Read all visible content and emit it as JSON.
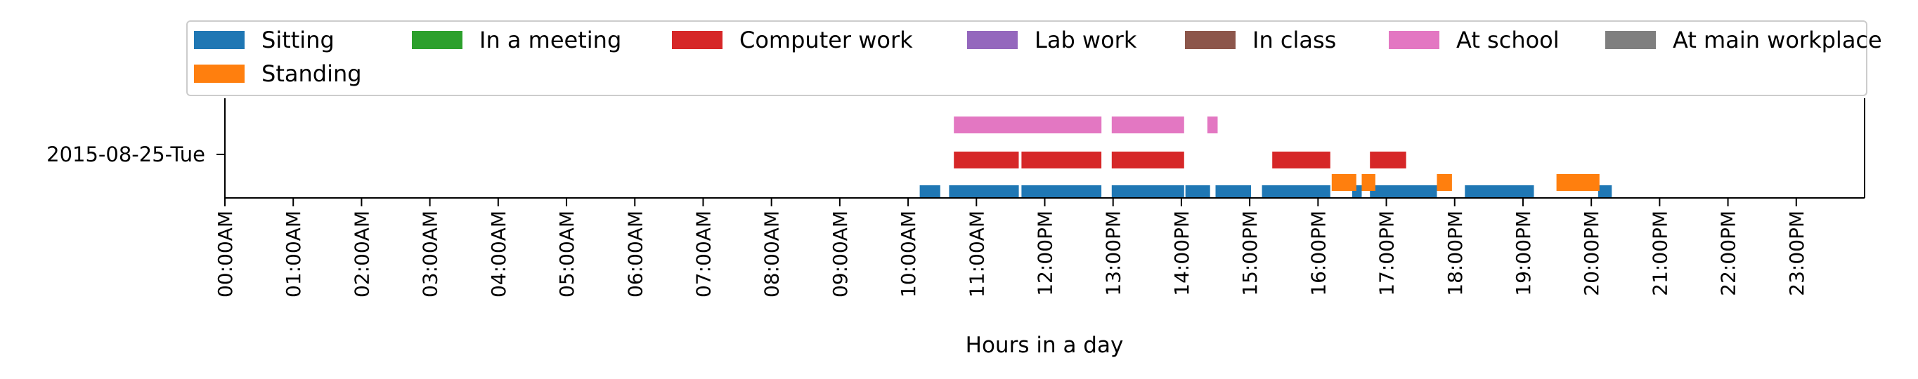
{
  "chart_data": {
    "type": "timeline",
    "xlabel": "Hours in a day",
    "xlim": [
      0,
      24
    ],
    "grid": false,
    "legend_placement": "top",
    "legend": [
      {
        "label": "Sitting",
        "color": "#1f77b4"
      },
      {
        "label": "In a meeting",
        "color": "#2ca02c"
      },
      {
        "label": "Computer work",
        "color": "#d62728"
      },
      {
        "label": "Lab work",
        "color": "#9467bd"
      },
      {
        "label": "In class",
        "color": "#8c564b"
      },
      {
        "label": "At school",
        "color": "#e377c2"
      },
      {
        "label": "At main workplace",
        "color": "#7f7f7f"
      },
      {
        "label": "Standing",
        "color": "#ff7f0e"
      }
    ],
    "ytick_labels": [
      "2015-08-25-Tue"
    ],
    "xtick_labels": [
      "00:00AM",
      "01:00AM",
      "02:00AM",
      "03:00AM",
      "04:00AM",
      "05:00AM",
      "06:00AM",
      "07:00AM",
      "08:00AM",
      "09:00AM",
      "10:00AM",
      "11:00AM",
      "12:00PM",
      "13:00PM",
      "14:00PM",
      "15:00PM",
      "16:00PM",
      "17:00PM",
      "18:00PM",
      "19:00PM",
      "20:00PM",
      "21:00PM",
      "22:00PM",
      "23:00PM"
    ],
    "rows": {
      "At school": [
        [
          10.67,
          12.83
        ],
        [
          12.98,
          14.04
        ],
        [
          14.38,
          14.53
        ]
      ],
      "Computer work": [
        [
          10.67,
          11.62
        ],
        [
          11.66,
          12.83
        ],
        [
          12.98,
          14.04
        ],
        [
          15.33,
          16.18
        ],
        [
          16.76,
          17.29
        ]
      ],
      "Sitting": [
        [
          10.17,
          10.47
        ],
        [
          10.6,
          11.62
        ],
        [
          11.66,
          12.83
        ],
        [
          12.98,
          14.04
        ],
        [
          14.06,
          14.42
        ],
        [
          14.5,
          15.02
        ],
        [
          15.18,
          16.18
        ],
        [
          16.5,
          16.64
        ],
        [
          16.76,
          17.74
        ],
        [
          18.15,
          19.16
        ],
        [
          20.1,
          20.3
        ]
      ],
      "Standing": [
        [
          16.2,
          16.56
        ],
        [
          16.64,
          16.84
        ],
        [
          17.74,
          17.96
        ],
        [
          19.49,
          20.12
        ]
      ]
    }
  }
}
